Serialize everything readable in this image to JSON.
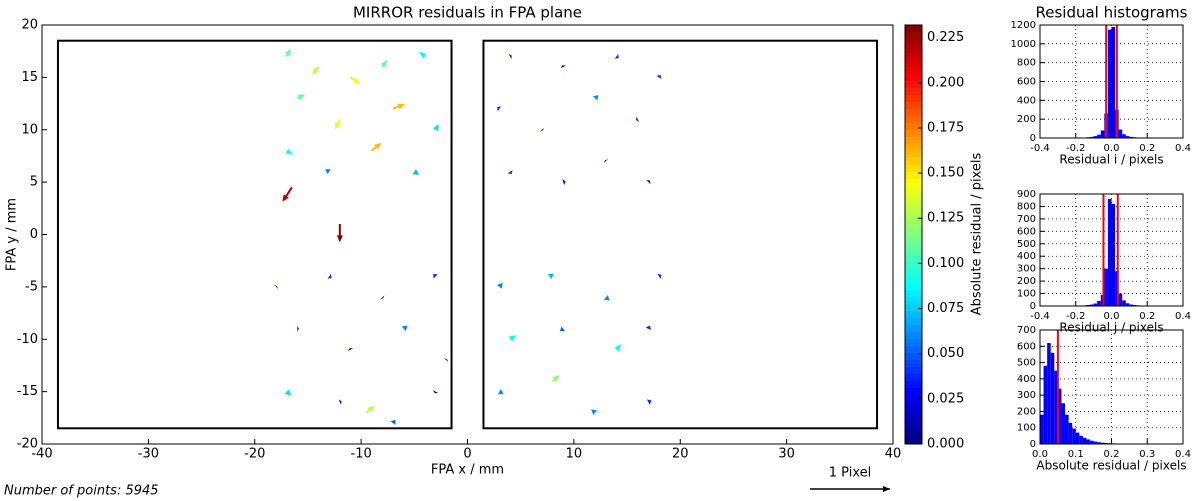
{
  "chart_data": [
    {
      "type": "quiver",
      "title": "MIRROR residuals in FPA plane",
      "x_label": "FPA x / mm",
      "y_label": "FPA y / mm",
      "annotation": "Number of points: 5945",
      "key": {
        "value": 1,
        "label": "1 Pixel"
      },
      "xlim": [
        -40,
        40
      ],
      "xticks": [
        -40,
        -30,
        -20,
        -10,
        0,
        10,
        20,
        30,
        40
      ],
      "ylim": [
        -20,
        20
      ],
      "yticks": [
        -20,
        -15,
        -10,
        -5,
        0,
        5,
        10,
        15,
        20
      ],
      "chips": [
        {
          "xlim": [
            -38.5,
            -1.5
          ],
          "ylim": [
            -18.5,
            18.5
          ]
        },
        {
          "xlim": [
            1.5,
            38.5
          ],
          "ylim": [
            -18.5,
            18.5
          ]
        }
      ],
      "x": [
        -17,
        -14,
        -11,
        -8,
        -4,
        -16,
        -12,
        -7,
        -3,
        -17,
        -13,
        -9,
        -5,
        -16.5,
        -12,
        4,
        9,
        14,
        18,
        3,
        7,
        12,
        16,
        4,
        9,
        13,
        17,
        -18,
        -13,
        -8,
        -3,
        -16,
        -11,
        -6,
        -2,
        -17,
        -12,
        -7,
        -3,
        -9.5,
        3,
        8,
        13,
        18,
        4,
        9,
        14,
        17,
        3,
        8,
        12,
        17
      ],
      "y": [
        17,
        16,
        15,
        16,
        17,
        13,
        11,
        12,
        10,
        8,
        6,
        8,
        6,
        4.5,
        1,
        17,
        16,
        17,
        15,
        12,
        10,
        13,
        11,
        6,
        5,
        7,
        5,
        -5,
        -4,
        -6,
        -4,
        -9,
        -11,
        -9,
        -12,
        -15,
        -16,
        -18,
        -15,
        -17,
        -5,
        -4,
        -6,
        -4,
        -10,
        -9,
        -11,
        -9,
        -15,
        -14,
        -17,
        -16
      ],
      "u": [
        0.05,
        -0.08,
        0.12,
        0.06,
        -0.07,
        0.1,
        -0.06,
        0.15,
        0.04,
        0.08,
        -0.05,
        0.12,
        0.06,
        -0.12,
        0,
        0.02,
        -0.01,
        0.03,
        0.02,
        -0.03,
        0.01,
        0.04,
        -0.02,
        0.02,
        0.03,
        -0.01,
        0.02,
        0.01,
        0.03,
        0.01,
        -0.03,
        0.02,
        -0.01,
        0.05,
        0.01,
        0.06,
        0.02,
        0.03,
        -0.01,
        0.1,
        0.04,
        -0.06,
        0.05,
        0.03,
        0.08,
        -0.04,
        0.06,
        0.02,
        0.05,
        0.09,
        -0.05,
        0.04
      ],
      "v": [
        0.1,
        -0.1,
        -0.08,
        0.09,
        0.06,
        0.05,
        -0.13,
        0.06,
        0.07,
        -0.05,
        0.03,
        0.1,
        -0.04,
        -0.18,
        -0.23,
        0.01,
        0.02,
        -0.02,
        0.03,
        0.02,
        -0.01,
        0.04,
        -0.01,
        -0.03,
        0.01,
        0.01,
        0.02,
        0.01,
        -0.02,
        -0.01,
        0.03,
        0.0,
        0.02,
        0.04,
        0.01,
        -0.05,
        0.01,
        0.04,
        -0.02,
        0.09,
        0.05,
        0.03,
        -0.04,
        0.02,
        0.05,
        -0.03,
        0.07,
        0.04,
        -0.03,
        0.08,
        0.04,
        0.02
      ],
      "magnitude": [
        0.11,
        0.13,
        0.14,
        0.11,
        0.09,
        0.11,
        0.14,
        0.16,
        0.08,
        0.09,
        0.06,
        0.16,
        0.07,
        0.22,
        0.23,
        0.02,
        0.02,
        0.04,
        0.04,
        0.04,
        0.01,
        0.06,
        0.02,
        0.04,
        0.03,
        0.01,
        0.03,
        0.01,
        0.04,
        0.01,
        0.04,
        0.02,
        0.02,
        0.06,
        0.01,
        0.08,
        0.02,
        0.05,
        0.02,
        0.13,
        0.06,
        0.07,
        0.06,
        0.04,
        0.09,
        0.05,
        0.09,
        0.04,
        0.06,
        0.12,
        0.06,
        0.04
      ],
      "colorbar": {
        "label": "Absolute residual / pixels",
        "lim": [
          0,
          0.232
        ],
        "ticks": [
          {
            "value": 0,
            "label": "0.000"
          },
          0.025,
          {
            "value": 0.05,
            "label": "0.050"
          },
          0.075,
          {
            "value": 0.1,
            "label": "0.100"
          },
          0.125,
          {
            "value": 0.15,
            "label": "0.150"
          },
          0.175,
          {
            "value": 0.2,
            "label": "0.200"
          },
          0.225
        ]
      }
    },
    {
      "type": "histogram",
      "title": "Residual histograms",
      "x_label": "Residual i / pixels",
      "color": "#0000ff",
      "line_color": "#ff0000",
      "bins": [
        -0.2,
        -0.18,
        -0.16,
        -0.14,
        -0.12,
        -0.1,
        -0.08,
        -0.06,
        -0.04,
        -0.02,
        0,
        0.02,
        0.04,
        0.06,
        0.08,
        0.1,
        0.12,
        0.14,
        0.16,
        0.18,
        0.2
      ],
      "counts": [
        2,
        3,
        5,
        8,
        12,
        20,
        35,
        80,
        260,
        1150,
        1180,
        300,
        90,
        40,
        20,
        12,
        8,
        5,
        3,
        2
      ],
      "lines": [
        -0.03,
        0.03
      ],
      "xlim": [
        -0.4,
        0.4
      ],
      "xticks": [
        -0.4,
        -0.2,
        {
          "value": 0,
          "label": "0.0"
        },
        0.2,
        0.4
      ],
      "ylim": [
        0,
        1200
      ],
      "yticks": [
        0,
        200,
        400,
        600,
        800,
        1000,
        1200
      ],
      "grid": true
    },
    {
      "type": "histogram",
      "x_label": "Residual j / pixels",
      "color": "#0000ff",
      "line_color": "#ff0000",
      "bins": [
        -0.2,
        -0.18,
        -0.16,
        -0.14,
        -0.12,
        -0.1,
        -0.08,
        -0.06,
        -0.04,
        -0.02,
        0,
        0.02,
        0.04,
        0.06,
        0.08,
        0.1,
        0.12,
        0.14,
        0.16,
        0.18,
        0.2
      ],
      "counts": [
        2,
        3,
        5,
        8,
        12,
        20,
        40,
        90,
        300,
        860,
        820,
        280,
        100,
        45,
        22,
        12,
        8,
        5,
        3,
        2
      ],
      "lines": [
        -0.045,
        0.035
      ],
      "xlim": [
        -0.4,
        0.4
      ],
      "xticks": [
        -0.4,
        -0.2,
        {
          "value": 0,
          "label": "0.0"
        },
        0.2,
        0.4
      ],
      "ylim": [
        0,
        900
      ],
      "yticks": [
        0,
        100,
        200,
        300,
        400,
        500,
        600,
        700,
        800,
        900
      ],
      "grid": true
    },
    {
      "type": "histogram",
      "x_label": "Absolute residual / pixels",
      "color": "#0000ff",
      "line_color": "#ff0000",
      "bins": [
        0,
        0.01,
        0.02,
        0.03,
        0.04,
        0.05,
        0.06,
        0.07,
        0.08,
        0.09,
        0.1,
        0.11,
        0.12,
        0.13,
        0.14,
        0.15,
        0.16,
        0.17,
        0.18,
        0.19,
        0.2,
        0.21,
        0.22,
        0.23,
        0.24,
        0.25,
        0.26,
        0.27,
        0.28,
        0.29,
        0.3
      ],
      "counts": [
        180,
        480,
        620,
        560,
        450,
        340,
        250,
        180,
        130,
        95,
        70,
        50,
        38,
        28,
        20,
        15,
        11,
        8,
        6,
        5,
        4,
        3,
        2,
        2,
        1,
        1,
        1,
        1,
        0,
        0
      ],
      "lines": [
        0.05
      ],
      "xlim": [
        0,
        0.4
      ],
      "xticks": [
        {
          "value": 0,
          "label": "0.0"
        },
        0.1,
        0.2,
        0.3,
        0.4
      ],
      "ylim": [
        0,
        700
      ],
      "yticks": [
        0,
        100,
        200,
        300,
        400,
        500,
        600,
        700
      ],
      "grid": true
    }
  ]
}
